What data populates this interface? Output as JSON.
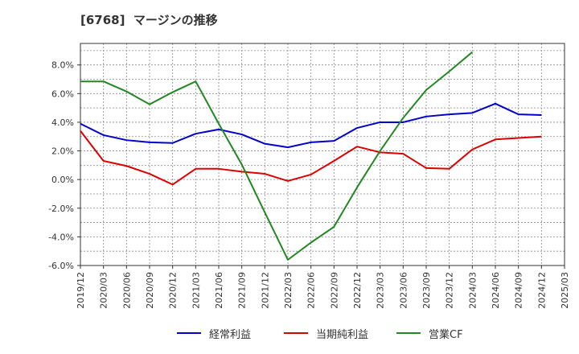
{
  "chart_data": {
    "type": "line",
    "title": "[6768]  マージンの推移",
    "xlabel": "",
    "ylabel": "",
    "ylim": [
      -6,
      9.5
    ],
    "yticks": [
      -6,
      -4,
      -2,
      0,
      2,
      4,
      6,
      8
    ],
    "ytick_labels": [
      "-6.0%",
      "-4.0%",
      "-2.0%",
      "0.0%",
      "2.0%",
      "4.0%",
      "6.0%",
      "8.0%"
    ],
    "x_categories": [
      "2019/12",
      "2020/03",
      "2020/06",
      "2020/09",
      "2020/12",
      "2021/03",
      "2021/06",
      "2021/09",
      "2021/12",
      "2022/03",
      "2022/06",
      "2022/09",
      "2022/12",
      "2023/03",
      "2023/06",
      "2023/09",
      "2023/12",
      "2024/03",
      "2024/06",
      "2024/09",
      "2024/12",
      "2025/03"
    ],
    "grid": true,
    "legend_position": "bottom",
    "series": [
      {
        "name": "経常利益",
        "color": "#0000cc",
        "values": [
          3.9,
          3.1,
          2.75,
          2.6,
          2.55,
          3.2,
          3.5,
          3.15,
          2.5,
          2.25,
          2.6,
          2.7,
          3.6,
          4.0,
          4.0,
          4.4,
          4.55,
          4.65,
          5.3,
          4.55,
          4.5,
          null
        ]
      },
      {
        "name": "当期純利益",
        "color": "#dd0000",
        "values": [
          3.4,
          1.3,
          0.95,
          0.4,
          -0.35,
          0.75,
          0.75,
          0.55,
          0.4,
          -0.1,
          0.35,
          1.3,
          2.3,
          1.9,
          1.8,
          0.8,
          0.75,
          2.1,
          2.8,
          2.9,
          3.0,
          null
        ]
      },
      {
        "name": "営業CF",
        "color": "#228822",
        "values": [
          6.85,
          6.85,
          6.15,
          5.25,
          6.1,
          6.85,
          3.9,
          1.05,
          -2.3,
          -5.6,
          -4.4,
          -3.3,
          -0.55,
          2.0,
          4.3,
          6.25,
          7.55,
          8.9,
          null,
          null,
          null,
          null
        ]
      }
    ]
  }
}
